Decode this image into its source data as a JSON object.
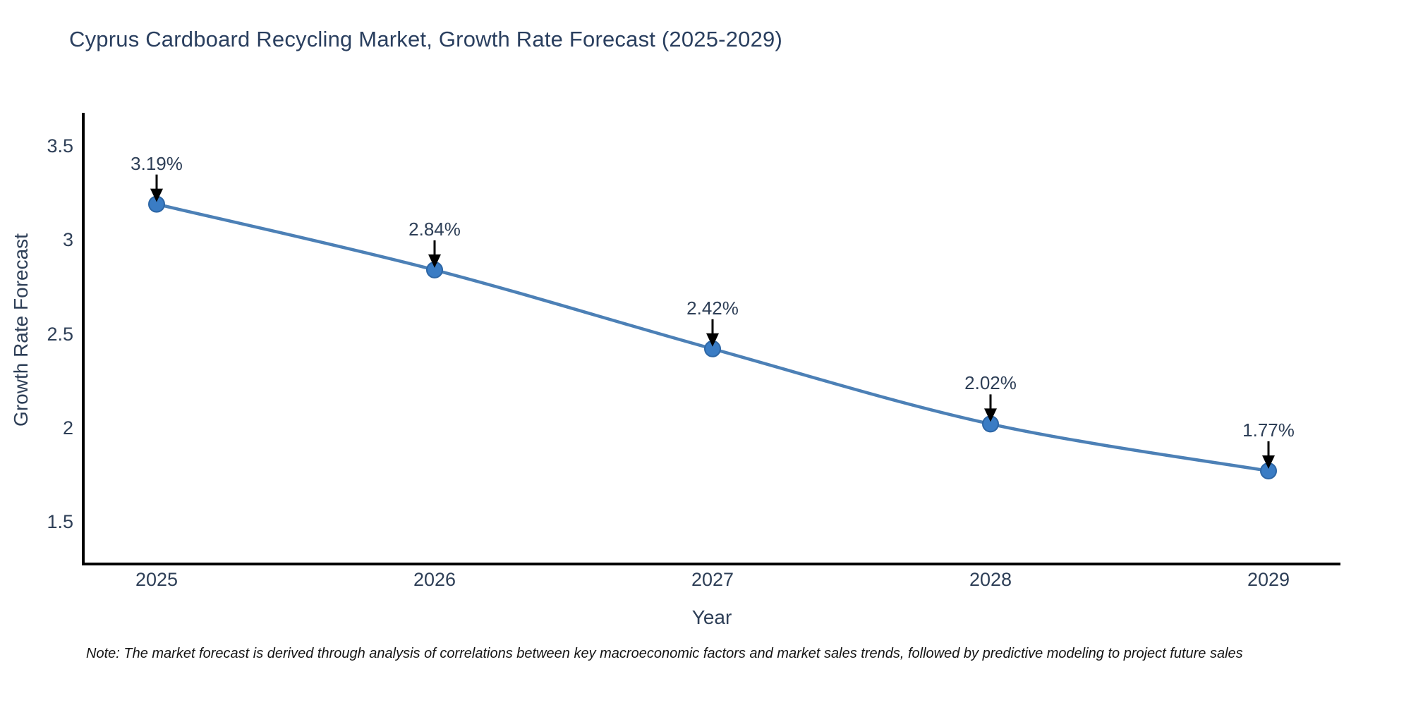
{
  "note": "Note: The market forecast is derived through analysis of correlations between key macroeconomic factors and market sales trends, followed by predictive modeling to project future sales",
  "colors": {
    "line": "#4c80b6",
    "marker_fill": "#3a7cc4",
    "marker_edge": "#2d66a5",
    "axis": "#000000",
    "arrow": "#000000",
    "text": "#2e3f57",
    "title_text": "#2a3f5f"
  },
  "chart_data": {
    "type": "line",
    "title": "Cyprus Cardboard Recycling Market, Growth Rate Forecast (2025-2029)",
    "xlabel": "Year",
    "ylabel": "Growth Rate Forecast",
    "categories": [
      "2025",
      "2026",
      "2027",
      "2028",
      "2029"
    ],
    "values": [
      3.19,
      2.84,
      2.42,
      2.02,
      1.77
    ],
    "labels": [
      "3.19%",
      "2.84%",
      "2.42%",
      "2.02%",
      "1.77%"
    ],
    "yticks": [
      "3.5",
      "3",
      "2.5",
      "2",
      "1.5"
    ],
    "ytick_values": [
      3.5,
      3.0,
      2.5,
      2.0,
      1.5
    ],
    "ylim": [
      1.28,
      3.68
    ],
    "grid": false,
    "legend_position": "none",
    "marker": "circle",
    "annotation_arrows": true,
    "line_shape": "spline"
  }
}
